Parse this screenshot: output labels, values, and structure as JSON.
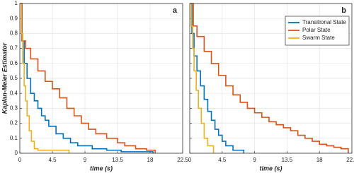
{
  "charts": [
    {
      "type": "step",
      "label": "a",
      "xlabel": "time (s)",
      "ylabel": "Kaplan-Meier Estimator",
      "xlim": [
        0,
        22.5
      ],
      "xticks": [
        0,
        4.5,
        9,
        13.5,
        18,
        22.5
      ],
      "ylim": [
        0,
        1
      ],
      "yticks": [
        0,
        0.1,
        0.2,
        0.3,
        0.4,
        0.5,
        0.6,
        0.7,
        0.8,
        0.9,
        1
      ],
      "grid": true,
      "series": [
        {
          "color": "#0072bd",
          "x": [
            0,
            0.3,
            0.6,
            1,
            1.5,
            2,
            2.5,
            3,
            3.5,
            4,
            5,
            6,
            7,
            8,
            10,
            12,
            14,
            18.4
          ],
          "values": [
            1,
            0.75,
            0.6,
            0.5,
            0.4,
            0.35,
            0.3,
            0.25,
            0.22,
            0.18,
            0.13,
            0.1,
            0.07,
            0.05,
            0.03,
            0.02,
            0.01,
            0
          ]
        },
        {
          "color": "#d95319",
          "x": [
            0,
            0.3,
            0.8,
            1.5,
            2.5,
            3.5,
            4.5,
            5.5,
            6.5,
            7.5,
            8.5,
            9.5,
            10.5,
            12,
            13.5,
            14.5,
            16,
            17.5,
            18.7
          ],
          "values": [
            1,
            0.75,
            0.7,
            0.63,
            0.55,
            0.48,
            0.43,
            0.37,
            0.3,
            0.25,
            0.2,
            0.16,
            0.13,
            0.1,
            0.07,
            0.05,
            0.03,
            0.02,
            0
          ]
        },
        {
          "color": "#edb120",
          "x": [
            0,
            0.2,
            0.4,
            0.6,
            0.8,
            1,
            1.3,
            1.6,
            2,
            2.5,
            6.8
          ],
          "values": [
            1,
            0.8,
            0.6,
            0.45,
            0.35,
            0.25,
            0.15,
            0.08,
            0.03,
            0.02,
            0
          ]
        }
      ]
    },
    {
      "type": "step",
      "label": "b",
      "xlabel": "time (s)",
      "legend": "upper right",
      "xlim": [
        0,
        22.5
      ],
      "xticks": [
        0,
        4.5,
        9,
        13.5,
        18,
        22.5
      ],
      "ylim": [
        0,
        1
      ],
      "yticks": [
        0,
        0.1,
        0.2,
        0.3,
        0.4,
        0.5,
        0.6,
        0.7,
        0.8,
        0.9,
        1
      ],
      "grid": true,
      "series": [
        {
          "name": "Transitional State",
          "color": "#0072bd",
          "x": [
            0,
            0.3,
            0.6,
            1,
            1.5,
            2,
            2.5,
            3,
            3.5,
            4,
            4.5,
            5,
            6,
            7.5
          ],
          "values": [
            1,
            0.8,
            0.65,
            0.55,
            0.45,
            0.36,
            0.28,
            0.22,
            0.16,
            0.12,
            0.08,
            0.05,
            0.02,
            0
          ]
        },
        {
          "name": "Polar State",
          "color": "#d95319",
          "x": [
            0,
            0.5,
            1,
            2,
            3,
            4,
            5,
            6,
            7,
            8,
            9,
            10,
            11,
            12,
            13,
            14,
            15,
            16,
            17,
            18,
            19,
            20,
            21,
            22
          ],
          "values": [
            1,
            0.85,
            0.78,
            0.68,
            0.6,
            0.52,
            0.45,
            0.39,
            0.34,
            0.3,
            0.27,
            0.24,
            0.21,
            0.19,
            0.17,
            0.15,
            0.12,
            0.1,
            0.08,
            0.06,
            0.05,
            0.04,
            0.03,
            0
          ]
        },
        {
          "name": "Swarm State",
          "color": "#edb120",
          "x": [
            0,
            0.2,
            0.4,
            0.6,
            0.9,
            1.2,
            1.6,
            2,
            2.5,
            3.3
          ],
          "values": [
            1,
            0.85,
            0.7,
            0.55,
            0.42,
            0.3,
            0.2,
            0.1,
            0.05,
            0
          ]
        }
      ]
    }
  ]
}
